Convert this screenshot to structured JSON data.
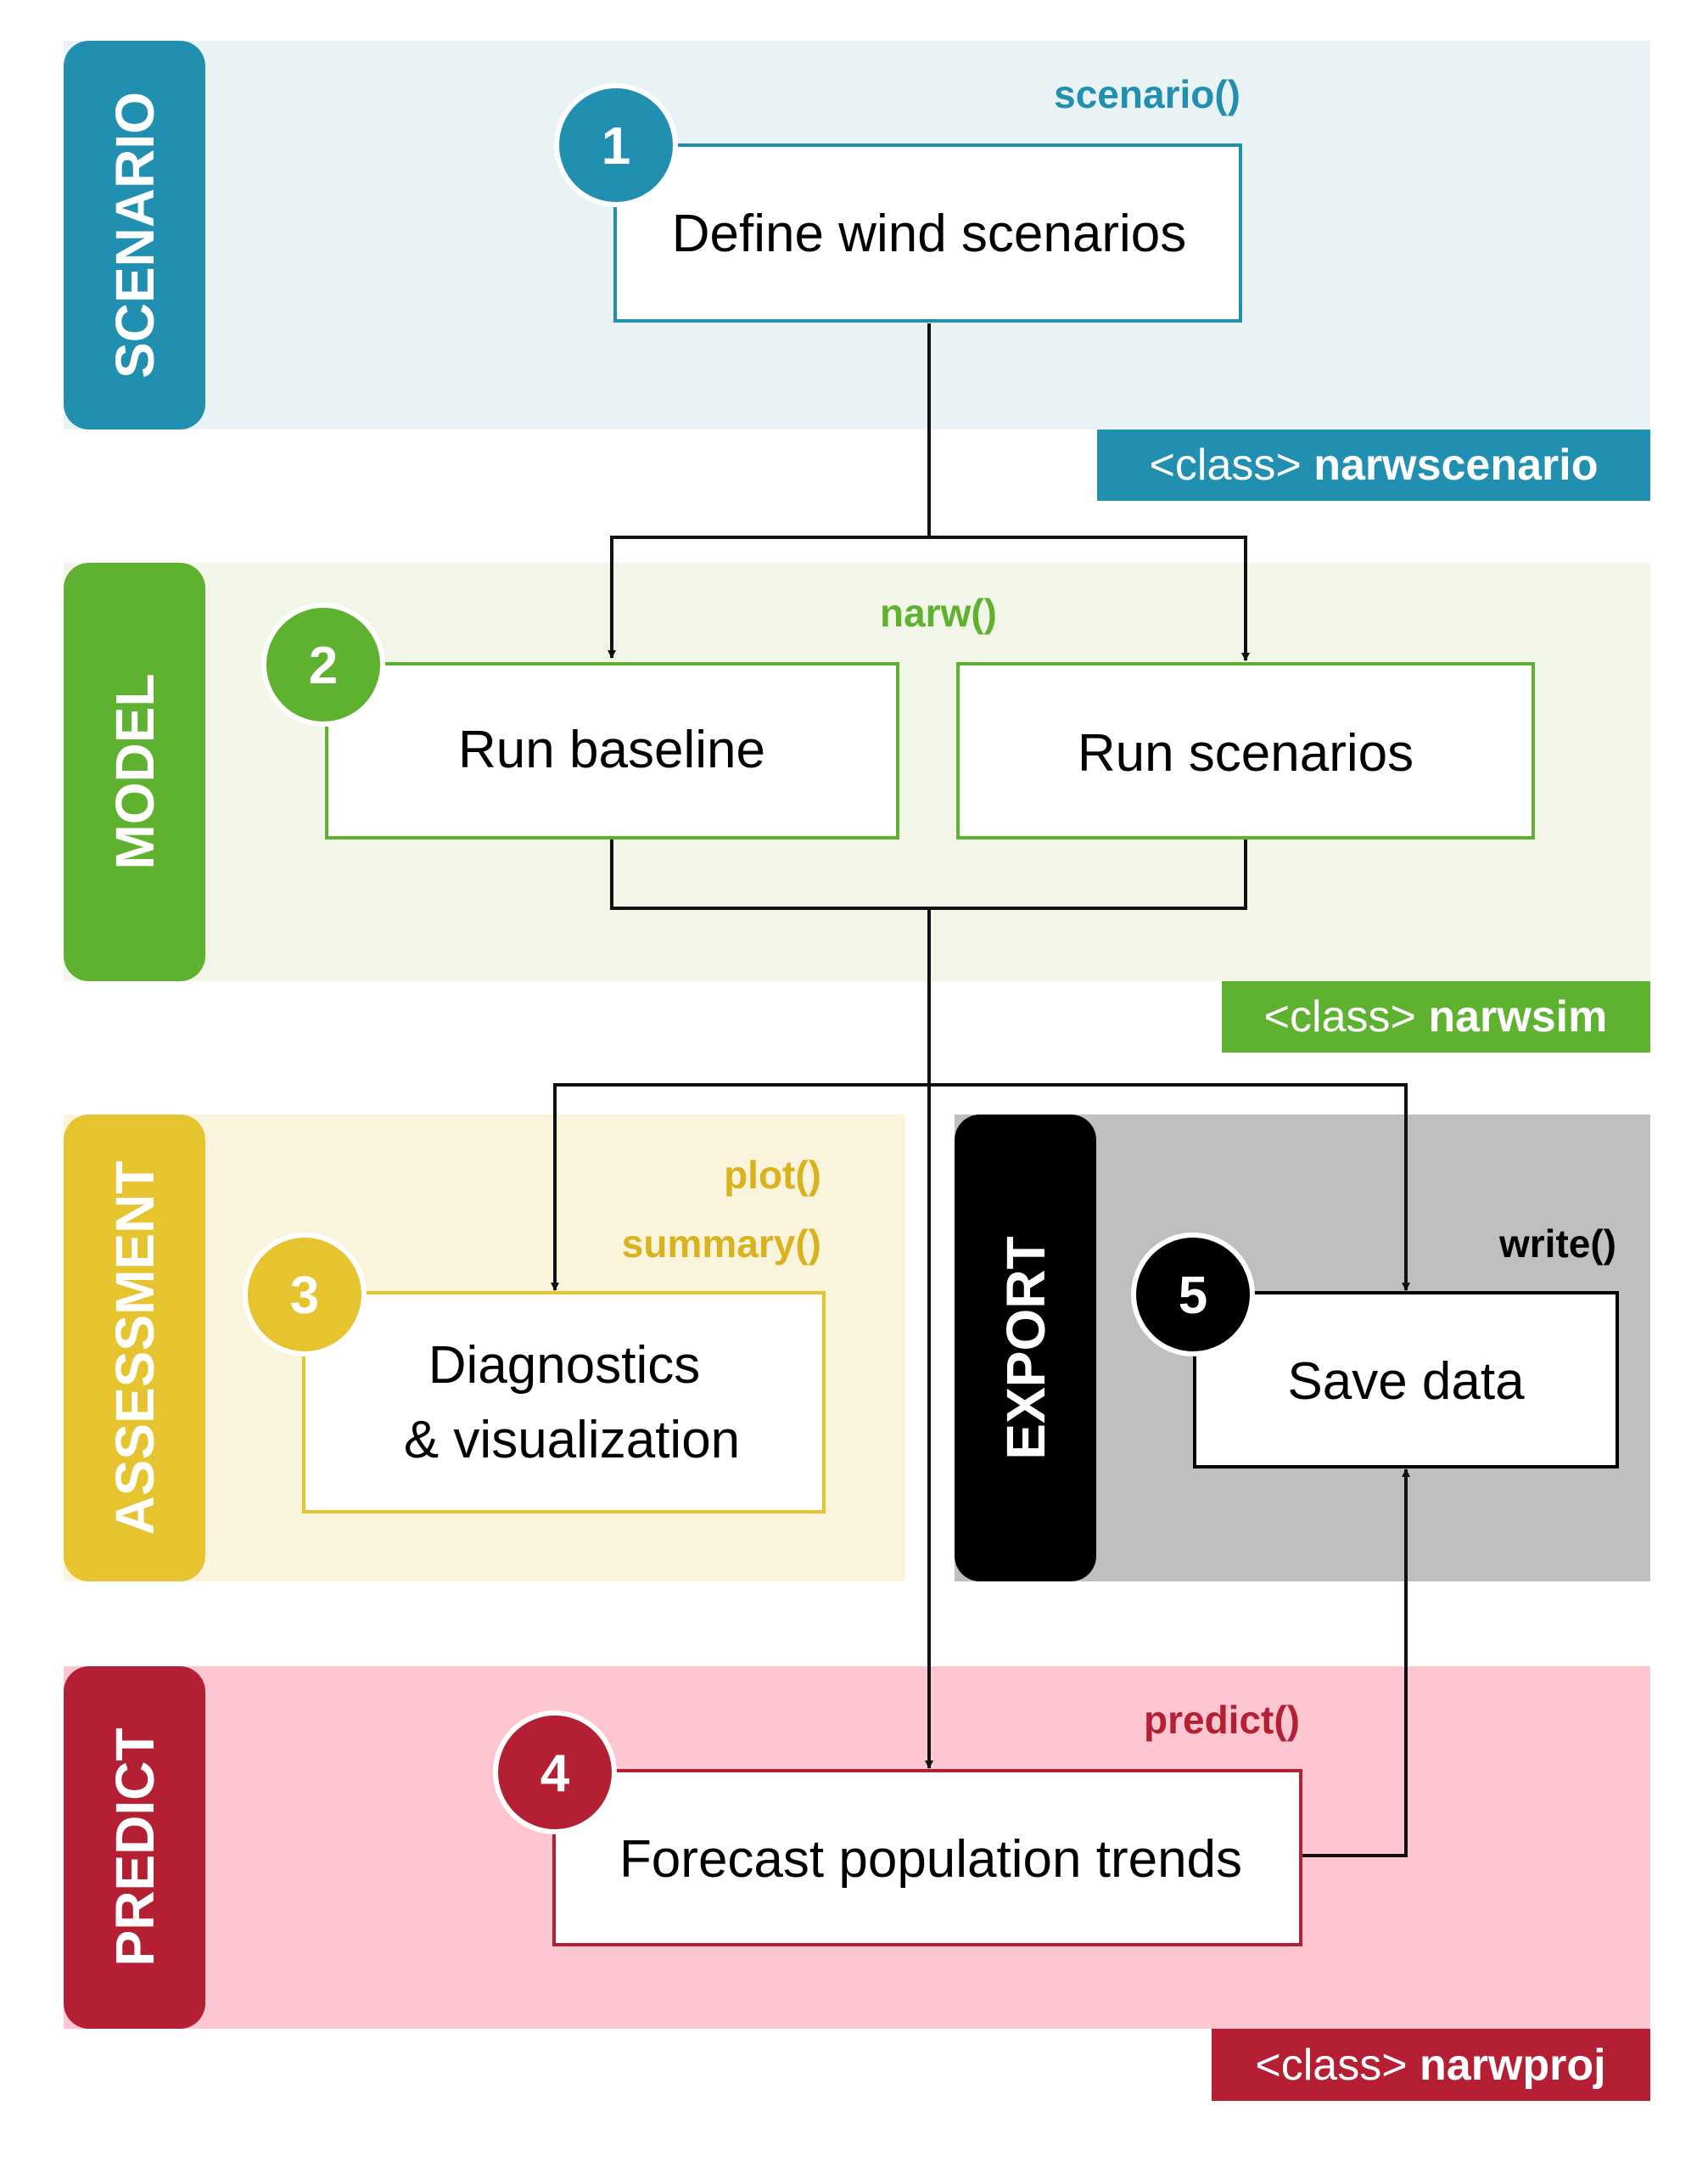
{
  "colors": {
    "scenario": "#2190b0",
    "scenario_bg": "#e9f2f5",
    "model": "#5fb230",
    "model_bg": "#f2f6e8",
    "assessment": "#e6c430",
    "assessment_bg": "#faf4dd",
    "export": "#000000",
    "export_bg": "#bfbfbf",
    "predict": "#b41f33",
    "predict_bg": "#fdc6d0",
    "arrow": "#111111"
  },
  "sections": {
    "scenario": {
      "label": "SCENARIO",
      "function": "scenario()",
      "class_prefix": "<class>",
      "class_name": "narwscenario"
    },
    "model": {
      "label": "MODEL",
      "function": "narw()",
      "class_prefix": "<class>",
      "class_name": "narwsim"
    },
    "assessment": {
      "label": "ASSESSMENT",
      "function_1": "plot()",
      "function_2": "summary()"
    },
    "export": {
      "label": "EXPORT",
      "function": "write()"
    },
    "predict": {
      "label": "PREDICT",
      "function": "predict()",
      "class_prefix": "<class>",
      "class_name": "narwproj"
    }
  },
  "steps": {
    "define": {
      "number": "1",
      "text": "Define wind scenarios"
    },
    "baseline": {
      "number": "2",
      "text": "Run baseline"
    },
    "scenarios": {
      "text": "Run scenarios"
    },
    "diagnostics": {
      "number": "3",
      "line1": "Diagnostics",
      "line2": "& visualization"
    },
    "forecast": {
      "number": "4",
      "text": "Forecast population trends"
    },
    "save": {
      "number": "5",
      "text": "Save data"
    }
  }
}
